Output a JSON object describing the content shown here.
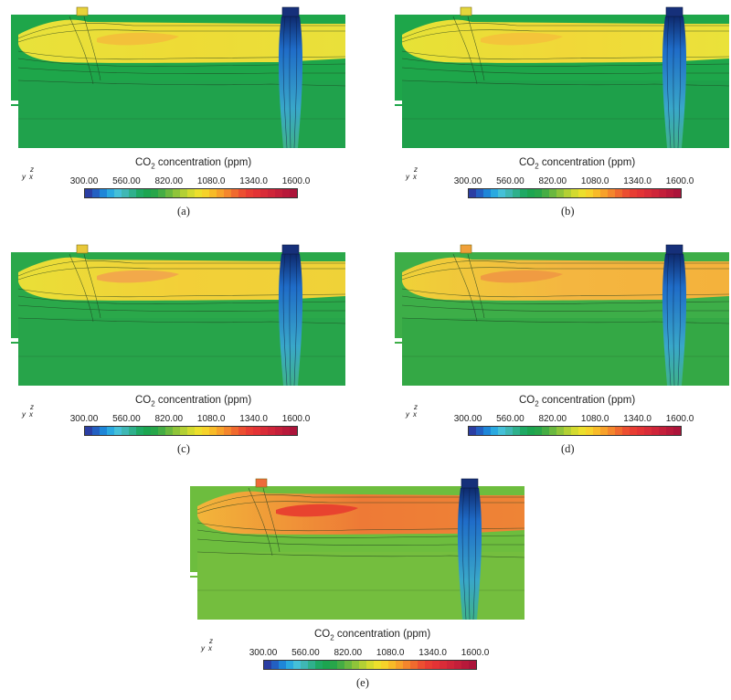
{
  "figure": {
    "colorbar": {
      "title_prefix": "CO",
      "title_sub": "2",
      "title_suffix": " concentration (ppm)",
      "ticks": [
        "300.00",
        "560.00",
        "820.00",
        "1080.0",
        "1340.0",
        "1600.0"
      ],
      "range": [
        300,
        1600
      ],
      "colors": [
        "#2b3ea3",
        "#2360c2",
        "#1e86d8",
        "#2aa9e0",
        "#45c0d8",
        "#3fb7b4",
        "#2fb08c",
        "#1fa964",
        "#1ca550",
        "#27a64a",
        "#45ad44",
        "#6ab83f",
        "#8fc43a",
        "#b3d034",
        "#d3da2f",
        "#ecdf2c",
        "#f6d22a",
        "#f8bb28",
        "#f7a12a",
        "#f4862c",
        "#f06a2e",
        "#ec4f31",
        "#e83d33",
        "#e33335",
        "#d92c38",
        "#cf2539",
        "#c41f3a",
        "#b8193a",
        "#ac143a"
      ]
    },
    "axes_labels": {
      "z": "z",
      "y": "y",
      "x": "x"
    },
    "panels": [
      {
        "caption": "(a)",
        "inlet_color": "#e8d23a"
      },
      {
        "caption": "(b)",
        "inlet_color": "#e3d63c"
      },
      {
        "caption": "(c)",
        "inlet_color": "#e8c83a"
      },
      {
        "caption": "(d)",
        "inlet_color": "#f0a03a"
      },
      {
        "caption": "(e)",
        "inlet_color": "#ee6a3a"
      }
    ]
  }
}
